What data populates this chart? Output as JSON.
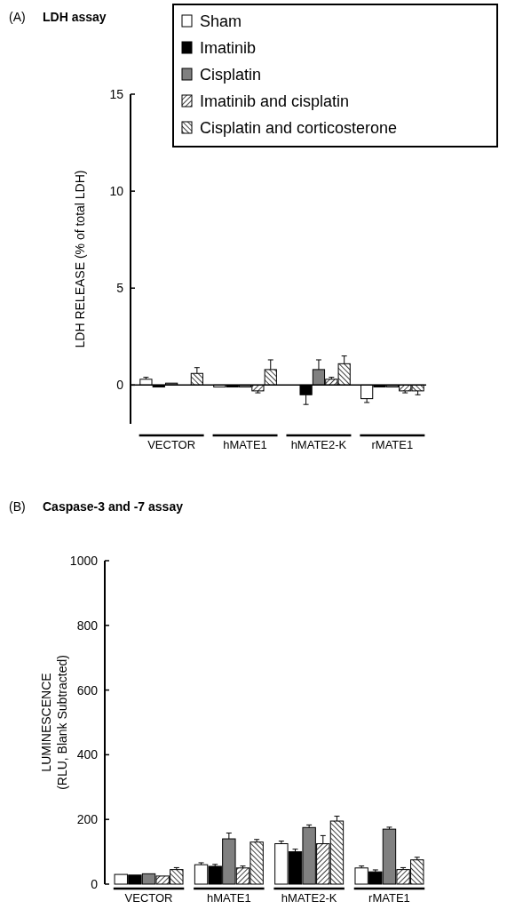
{
  "chart_data": [
    {
      "type": "bar",
      "title": "LDH assay",
      "annotations": [
        "(A)"
      ],
      "ylabel": "LDH RELEASE (% of total LDH)",
      "categories": [
        "VECTOR",
        "hMATE1",
        "hMATE2-K",
        "rMATE1"
      ],
      "ylim": [
        -2,
        15
      ],
      "yticks": [
        0,
        5,
        10,
        15
      ],
      "legend": "top right",
      "ref_lines": [
        {
          "axis": "y",
          "value": 0,
          "color": "#000000"
        }
      ],
      "series": [
        {
          "name": "Sham",
          "color": "#ffffff",
          "values": [
            0.3,
            -0.1,
            null,
            -0.7
          ],
          "errors": [
            0.1,
            null,
            null,
            0.2
          ]
        },
        {
          "name": "Imatinib",
          "color": "#000000",
          "values": [
            -0.1,
            -0.1,
            -0.5,
            -0.1
          ],
          "errors": [
            null,
            null,
            0.5,
            null
          ]
        },
        {
          "name": "Cisplatin",
          "color": "#808080",
          "values": [
            0.1,
            -0.1,
            0.8,
            -0.1
          ],
          "errors": [
            null,
            null,
            0.5,
            null
          ]
        },
        {
          "name": "Imatinib and cisplatin",
          "color": "#000000",
          "values": [
            0,
            -0.3,
            0.3,
            -0.3
          ],
          "errors": [
            null,
            0.1,
            0.1,
            0.1
          ]
        },
        {
          "name": "Cisplatin and corticosterone",
          "color": "#000000",
          "values": [
            0.6,
            0.8,
            1.1,
            -0.3
          ],
          "errors": [
            0.3,
            0.5,
            0.4,
            0.2
          ]
        }
      ]
    },
    {
      "type": "bar",
      "title": "Caspase-3 and -7 assay",
      "annotations": [
        "(B)"
      ],
      "ylabel": "LUMINESCENCE\n(RLU, Blank Subtracted)",
      "categories": [
        "VECTOR",
        "hMATE1",
        "hMATE2-K",
        "rMATE1"
      ],
      "ylim": [
        0,
        1000
      ],
      "yticks": [
        0,
        200,
        400,
        600,
        800,
        1000
      ],
      "legend": false,
      "series": [
        {
          "color": "#ffffff",
          "values": [
            30,
            60,
            125,
            50
          ],
          "errors": [
            null,
            6,
            8,
            6
          ]
        },
        {
          "color": "#000000",
          "values": [
            28,
            55,
            100,
            38
          ],
          "errors": [
            null,
            6,
            8,
            6
          ]
        },
        {
          "color": "#808080",
          "values": [
            32,
            140,
            175,
            170
          ],
          "errors": [
            null,
            18,
            8,
            6
          ]
        },
        {
          "color": "#000000",
          "values": [
            25,
            50,
            125,
            45
          ],
          "errors": [
            null,
            6,
            25,
            6
          ]
        },
        {
          "color": "#000000",
          "values": [
            45,
            130,
            195,
            75
          ],
          "errors": [
            6,
            8,
            15,
            8
          ]
        }
      ]
    }
  ]
}
